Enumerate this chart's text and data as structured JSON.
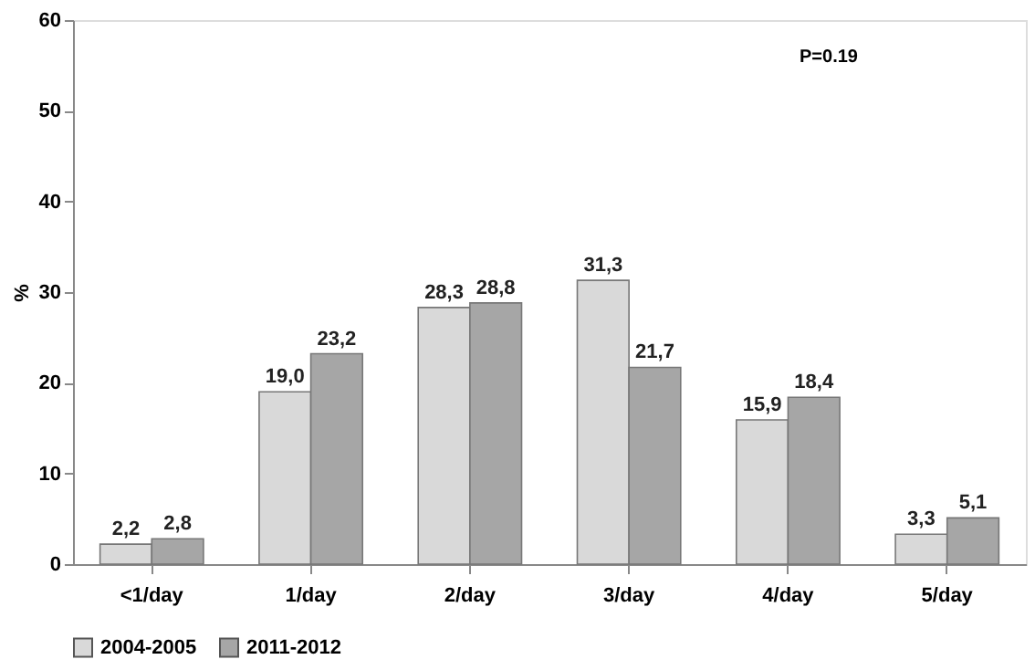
{
  "chart_data": {
    "type": "bar",
    "ylabel": "%",
    "categories": [
      "<1/day",
      "1/day",
      "2/day",
      "3/day",
      "4/day",
      "5/day"
    ],
    "series": [
      {
        "name": "2004-2005",
        "color": "#d9d9d9",
        "values": [
          2.2,
          19.0,
          28.3,
          31.3,
          15.9,
          3.3
        ],
        "value_labels": [
          "2,2",
          "19,0",
          "28,3",
          "31,3",
          "15,9",
          "3,3"
        ]
      },
      {
        "name": "2011-2012",
        "color": "#a6a6a6",
        "values": [
          2.8,
          23.2,
          28.8,
          21.7,
          18.4,
          5.1
        ],
        "value_labels": [
          "2,8",
          "23,2",
          "28,8",
          "21,7",
          "18,4",
          "5,1"
        ]
      }
    ],
    "ylim": [
      0,
      60
    ],
    "yticks": [
      0,
      10,
      20,
      30,
      40,
      50,
      60
    ],
    "grid": false,
    "legend": "bottom",
    "annotations": [
      "P=0.19"
    ]
  }
}
